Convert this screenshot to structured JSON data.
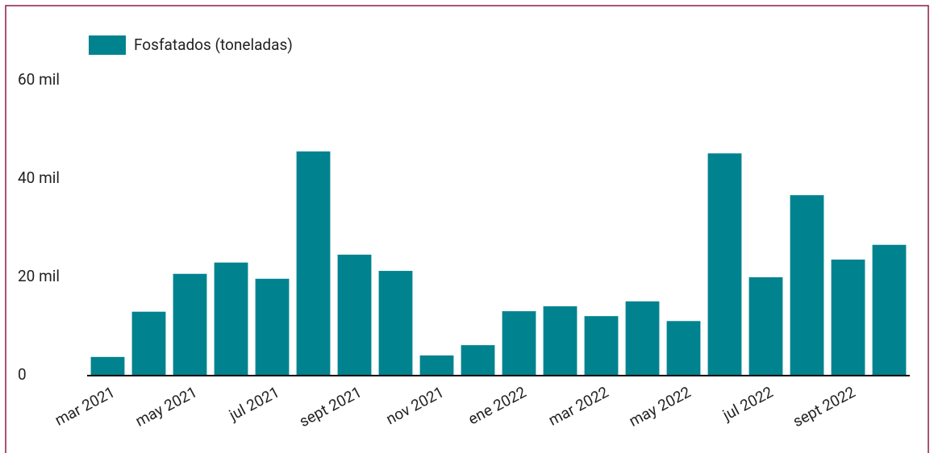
{
  "chart_data": {
    "type": "bar",
    "categories": [
      "mar 2021",
      null,
      "may 2021",
      null,
      "jul 2021",
      null,
      "sept 2021",
      null,
      "nov 2021",
      null,
      "ene 2022",
      null,
      "mar 2022",
      null,
      "may 2022",
      null,
      "jul 2022",
      null,
      "sept 2022",
      null
    ],
    "series": [
      {
        "name": "Fosfatados (toneladas)",
        "color": "#00838f",
        "values": [
          3800,
          13000,
          20700,
          23000,
          19700,
          45600,
          24600,
          21300,
          4100,
          6200,
          13100,
          14100,
          12100,
          15100,
          11100,
          45200,
          20000,
          36700,
          23600,
          26600
        ]
      }
    ],
    "ylim": [
      0,
      60000
    ],
    "yticks": [
      0,
      {
        "value": 20000,
        "label": "20 mil"
      },
      {
        "value": 40000,
        "label": "40 mil"
      },
      {
        "value": 60000,
        "label": "60 mil"
      }
    ],
    "legend": "top-left"
  }
}
